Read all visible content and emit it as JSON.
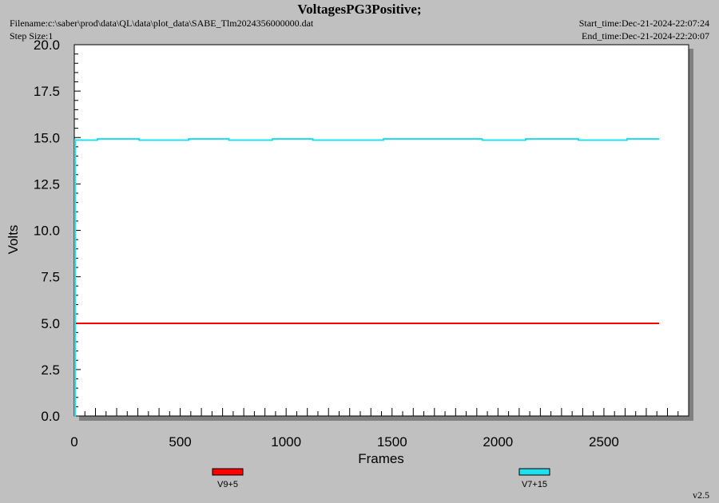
{
  "header": {
    "title": "VoltagesPG3Positive;",
    "filename_label": "Filename:c:\\saber\\prod\\data\\QL\\data\\plot_data\\SABE_Tlm2024356000000.dat",
    "step_size_label": "Step Size:1",
    "start_time_label": "Start_time:Dec-21-2024-22:07:24",
    "end_time_label": "End_time:Dec-21-2024-22:20:07"
  },
  "footer": {
    "version": "v2.5"
  },
  "colors": {
    "background": "#c0c0c0",
    "plot_area": "#ffffff",
    "V9+5": "#ff0000",
    "V7+15": "#20e0f0",
    "shadow": "#808080"
  },
  "chart_data": {
    "type": "line",
    "title": "VoltagesPG3Positive;",
    "xlabel": "Frames",
    "ylabel": "Volts",
    "xlim": [
      0,
      2900
    ],
    "ylim": [
      0,
      20
    ],
    "x_ticks": [
      0,
      500,
      1000,
      1500,
      2000,
      2500
    ],
    "x_tick_labels": [
      "0",
      "500",
      "1000",
      "1500",
      "2000",
      "2500"
    ],
    "y_ticks": [
      0,
      2.5,
      5,
      7.5,
      10,
      12.5,
      15,
      17.5,
      20
    ],
    "y_tick_labels": [
      "0.0",
      "2.5",
      "5.0",
      "7.5",
      "10.0",
      "12.5",
      "15.0",
      "17.5",
      "20.0"
    ],
    "grid": false,
    "legend_position": "bottom",
    "series": [
      {
        "name": "V9+5",
        "color": "#ff0000",
        "step": true,
        "x": [
          0,
          2760
        ],
        "y": [
          5.0,
          5.0
        ]
      },
      {
        "name": "V7+15",
        "color": "#20e0f0",
        "step": true,
        "x": [
          0,
          3,
          8,
          110,
          305,
          540,
          730,
          935,
          1125,
          1460,
          1925,
          2130,
          2380,
          2610,
          2760
        ],
        "y": [
          0.0,
          14.85,
          14.85,
          14.92,
          14.85,
          14.92,
          14.85,
          14.92,
          14.85,
          14.92,
          14.85,
          14.92,
          14.85,
          14.92,
          14.92
        ]
      }
    ]
  }
}
